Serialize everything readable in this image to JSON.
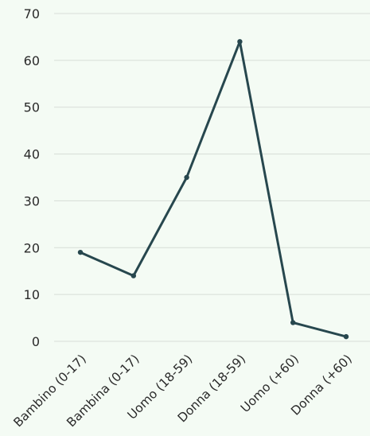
{
  "chart_data": {
    "type": "line",
    "title": "",
    "xlabel": "",
    "ylabel": "",
    "categories": [
      "Bambino (0-17)",
      "Bambina (0-17)",
      "Uomo (18-59)",
      "Donna (18-59)",
      "Uomo (+60)",
      "Donna (+60)"
    ],
    "series": [
      {
        "values": [
          19,
          14,
          35,
          64,
          4,
          1
        ]
      }
    ],
    "ylim": [
      0,
      70
    ],
    "yticks": [
      0,
      10,
      20,
      30,
      40,
      50,
      60,
      70
    ],
    "grid": true,
    "legend": "none",
    "colors": {
      "line": "#27474e",
      "grid": "#d7ddd7",
      "background": "#f4fbf4"
    }
  }
}
